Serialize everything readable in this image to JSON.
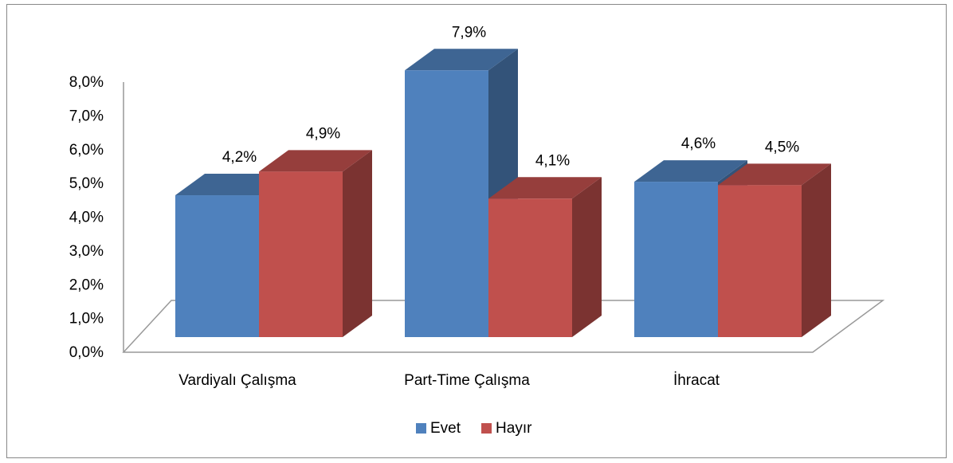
{
  "chart_data": {
    "type": "bar3d",
    "categories": [
      "Vardiyalı Çalışma",
      "Part-Time Çalışma",
      "İhracat"
    ],
    "series": [
      {
        "name": "Evet",
        "color": "#4f81bd",
        "values": [
          4.2,
          7.9,
          4.6
        ],
        "value_labels": [
          "4,2%",
          "7,9%",
          "4,6%"
        ]
      },
      {
        "name": "Hayır",
        "color": "#c0504d",
        "values": [
          4.9,
          4.1,
          4.5
        ],
        "value_labels": [
          "4,9%",
          "4,1%",
          "4,5%"
        ]
      }
    ],
    "ylim": [
      0,
      8
    ],
    "yticks": [
      {
        "value": 0,
        "label": "0,0%"
      },
      {
        "value": 1,
        "label": "1,0%"
      },
      {
        "value": 2,
        "label": "2,0%"
      },
      {
        "value": 3,
        "label": "3,0%"
      },
      {
        "value": 4,
        "label": "4,0%"
      },
      {
        "value": 5,
        "label": "5,0%"
      },
      {
        "value": 6,
        "label": "6,0%"
      },
      {
        "value": 7,
        "label": "7,0%"
      },
      {
        "value": 8,
        "label": "8,0%"
      }
    ],
    "grid": false,
    "legend": "bottom"
  }
}
